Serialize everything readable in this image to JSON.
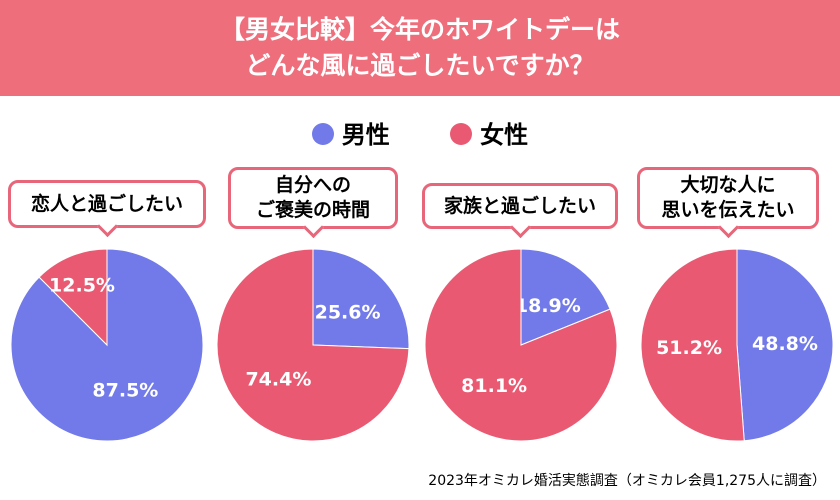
{
  "title_line1": "【男女比較】今年のホワイトデーは",
  "title_line2": "どんな風に過ごしたいですか？",
  "source": "2023年オミカレ婚活実態調査（オミカレ会員1,275人に調査）",
  "colors": {
    "male": "#717ae8",
    "female": "#e95a72",
    "header": "#ef6e7c"
  },
  "chart_data": {
    "type": "pie",
    "legend": [
      "男性",
      "女性"
    ],
    "legend_placement": "top",
    "charts": [
      {
        "title_lines": [
          "恋人と過ごしたい"
        ],
        "values": [
          87.5,
          12.5
        ],
        "labels": [
          "87.5%",
          "12.5%"
        ]
      },
      {
        "title_lines": [
          "自分への",
          "ご褒美の時間"
        ],
        "values": [
          25.6,
          74.4
        ],
        "labels": [
          "25.6%",
          "74.4%"
        ]
      },
      {
        "title_lines": [
          "家族と過ごしたい"
        ],
        "values": [
          18.9,
          81.1
        ],
        "labels": [
          "18.9%",
          "81.1%"
        ]
      },
      {
        "title_lines": [
          "大切な人に",
          "思いを伝えたい"
        ],
        "values": [
          48.8,
          51.2
        ],
        "labels": [
          "48.8%",
          "51.2%"
        ]
      }
    ]
  }
}
